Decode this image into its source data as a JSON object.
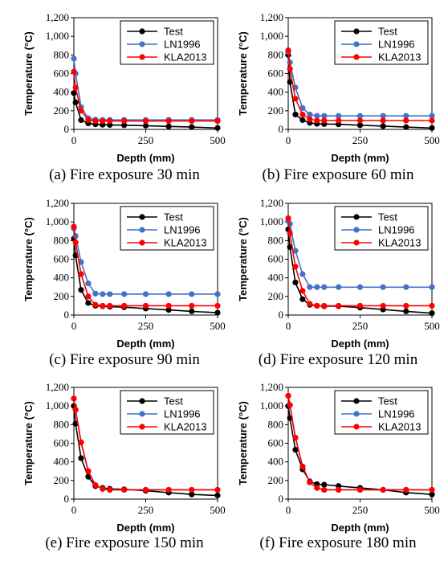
{
  "chart_data": [
    {
      "type": "line",
      "caption": "(a) Fire exposure 30 min",
      "xlabel": "Depth (mm)",
      "ylabel": "Temperature (°C)",
      "xlim": [
        0,
        500
      ],
      "ylim": [
        0,
        1200
      ],
      "xticks": [
        0,
        250,
        500
      ],
      "yticks": [
        0,
        200,
        400,
        600,
        800,
        1000,
        1200
      ],
      "xtick_labels": [
        "0",
        "250",
        "500"
      ],
      "ytick_labels": [
        "0",
        "200",
        "400",
        "600",
        "800",
        "1,000",
        "1,200"
      ],
      "legend_position": "top-right",
      "series": [
        {
          "name": "Test",
          "color": "#000000",
          "x": [
            0,
            6,
            25,
            50,
            75,
            100,
            125,
            175,
            250,
            330,
            410,
            500
          ],
          "y": [
            390,
            290,
            100,
            65,
            55,
            50,
            48,
            45,
            40,
            32,
            25,
            15
          ]
        },
        {
          "name": "LN1996",
          "color": "#4472c4",
          "x": [
            0,
            6,
            25,
            50,
            75,
            100,
            125,
            175,
            250,
            330,
            410,
            500
          ],
          "y": [
            760,
            600,
            240,
            120,
            105,
            102,
            102,
            102,
            102,
            102,
            102,
            102
          ]
        },
        {
          "name": "KLA2013",
          "color": "#ff0000",
          "x": [
            0,
            6,
            25,
            50,
            75,
            100,
            125,
            175,
            250,
            330,
            410,
            500
          ],
          "y": [
            620,
            450,
            200,
            100,
            90,
            90,
            90,
            90,
            90,
            90,
            90,
            90
          ]
        }
      ]
    },
    {
      "type": "line",
      "caption": "(b) Fire exposure 60 min",
      "xlabel": "Depth (mm)",
      "ylabel": "Temperature (°C)",
      "xlim": [
        0,
        500
      ],
      "ylim": [
        0,
        1200
      ],
      "xticks": [
        0,
        250,
        500
      ],
      "yticks": [
        0,
        200,
        400,
        600,
        800,
        1000,
        1200
      ],
      "xtick_labels": [
        "0",
        "250",
        "500"
      ],
      "ytick_labels": [
        "0",
        "200",
        "400",
        "600",
        "800",
        "1,000",
        "1,200"
      ],
      "legend_position": "top-right",
      "series": [
        {
          "name": "Test",
          "color": "#000000",
          "x": [
            0,
            6,
            25,
            50,
            75,
            100,
            125,
            175,
            250,
            330,
            410,
            500
          ],
          "y": [
            800,
            510,
            160,
            100,
            70,
            60,
            58,
            55,
            45,
            35,
            25,
            15
          ]
        },
        {
          "name": "LN1996",
          "color": "#4472c4",
          "x": [
            0,
            6,
            25,
            50,
            75,
            100,
            125,
            175,
            250,
            330,
            410,
            500
          ],
          "y": [
            830,
            720,
            450,
            230,
            160,
            145,
            145,
            145,
            145,
            145,
            145,
            145
          ]
        },
        {
          "name": "KLA2013",
          "color": "#ff0000",
          "x": [
            0,
            6,
            25,
            50,
            75,
            100,
            125,
            175,
            250,
            330,
            410,
            500
          ],
          "y": [
            850,
            650,
            330,
            160,
            110,
            95,
            95,
            95,
            95,
            95,
            95,
            95
          ]
        }
      ]
    },
    {
      "type": "line",
      "caption": "(c) Fire exposure 90 min",
      "xlabel": "Depth (mm)",
      "ylabel": "Temperature (°C)",
      "xlim": [
        0,
        500
      ],
      "ylim": [
        0,
        1200
      ],
      "xticks": [
        0,
        250,
        500
      ],
      "yticks": [
        0,
        200,
        400,
        600,
        800,
        1000,
        1200
      ],
      "xtick_labels": [
        "0",
        "250",
        "500"
      ],
      "ytick_labels": [
        "0",
        "200",
        "400",
        "600",
        "800",
        "1,000",
        "1,200"
      ],
      "legend_position": "top-right",
      "series": [
        {
          "name": "Test",
          "color": "#000000",
          "x": [
            0,
            6,
            25,
            50,
            75,
            100,
            125,
            175,
            250,
            330,
            410,
            500
          ],
          "y": [
            820,
            640,
            270,
            130,
            100,
            95,
            90,
            85,
            70,
            55,
            40,
            25
          ]
        },
        {
          "name": "LN1996",
          "color": "#4472c4",
          "x": [
            0,
            6,
            25,
            50,
            75,
            100,
            125,
            175,
            250,
            330,
            410,
            500
          ],
          "y": [
            930,
            850,
            570,
            340,
            230,
            225,
            225,
            225,
            225,
            225,
            225,
            225
          ]
        },
        {
          "name": "KLA2013",
          "color": "#ff0000",
          "x": [
            0,
            6,
            25,
            50,
            75,
            100,
            125,
            175,
            250,
            330,
            410,
            500
          ],
          "y": [
            950,
            780,
            440,
            200,
            110,
            100,
            100,
            100,
            100,
            100,
            100,
            100
          ]
        }
      ]
    },
    {
      "type": "line",
      "caption": "(d) Fire exposure 120 min",
      "xlabel": "Depth (mm)",
      "ylabel": "Temperature (°C)",
      "xlim": [
        0,
        500
      ],
      "ylim": [
        0,
        1200
      ],
      "xticks": [
        0,
        250,
        500
      ],
      "yticks": [
        0,
        200,
        400,
        600,
        800,
        1000,
        1200
      ],
      "xtick_labels": [
        "0",
        "250",
        "500"
      ],
      "ytick_labels": [
        "0",
        "200",
        "400",
        "600",
        "800",
        "1,000",
        "1,200"
      ],
      "legend_position": "top-right",
      "series": [
        {
          "name": "Test",
          "color": "#000000",
          "x": [
            0,
            6,
            25,
            50,
            75,
            100,
            125,
            175,
            250,
            330,
            410,
            500
          ],
          "y": [
            920,
            730,
            350,
            170,
            110,
            100,
            95,
            95,
            80,
            60,
            40,
            20
          ]
        },
        {
          "name": "LN1996",
          "color": "#4472c4",
          "x": [
            0,
            6,
            25,
            50,
            75,
            100,
            125,
            175,
            250,
            330,
            410,
            500
          ],
          "y": [
            1010,
            980,
            690,
            440,
            300,
            300,
            300,
            300,
            300,
            300,
            300,
            300
          ]
        },
        {
          "name": "KLA2013",
          "color": "#ff0000",
          "x": [
            0,
            6,
            25,
            50,
            75,
            100,
            125,
            175,
            250,
            330,
            410,
            500
          ],
          "y": [
            1040,
            880,
            520,
            260,
            120,
            100,
            100,
            100,
            100,
            100,
            100,
            100
          ]
        }
      ]
    },
    {
      "type": "line",
      "caption": "(e) Fire exposure 150 min",
      "xlabel": "Depth (mm)",
      "ylabel": "Temperature (°C)",
      "xlim": [
        0,
        500
      ],
      "ylim": [
        0,
        1200
      ],
      "xticks": [
        0,
        250,
        500
      ],
      "yticks": [
        0,
        200,
        400,
        600,
        800,
        1000,
        1200
      ],
      "xtick_labels": [
        "0",
        "250",
        "500"
      ],
      "ytick_labels": [
        "0",
        "200",
        "400",
        "600",
        "800",
        "1,000",
        "1,200"
      ],
      "legend_position": "top-right",
      "series": [
        {
          "name": "Test",
          "color": "#000000",
          "x": [
            0,
            6,
            25,
            50,
            75,
            100,
            125,
            175,
            250,
            330,
            410,
            500
          ],
          "y": [
            1000,
            810,
            440,
            240,
            140,
            120,
            110,
            105,
            90,
            70,
            50,
            40
          ]
        },
        {
          "name": "LN1996",
          "color": "#4472c4",
          "x": [
            0,
            6,
            25,
            50,
            75,
            100,
            125,
            175,
            250,
            330,
            410,
            500
          ],
          "y": [
            1080,
            960,
            610,
            300,
            150,
            110,
            100,
            100,
            100,
            100,
            100,
            100
          ]
        },
        {
          "name": "KLA2013",
          "color": "#ff0000",
          "x": [
            0,
            6,
            25,
            50,
            75,
            100,
            125,
            175,
            250,
            330,
            410,
            500
          ],
          "y": [
            1080,
            960,
            610,
            300,
            150,
            110,
            100,
            100,
            100,
            100,
            100,
            100
          ]
        }
      ]
    },
    {
      "type": "line",
      "caption": "(f) Fire exposure 180 min",
      "xlabel": "Depth (mm)",
      "ylabel": "Temperature (°C)",
      "xlim": [
        0,
        500
      ],
      "ylim": [
        0,
        1200
      ],
      "xticks": [
        0,
        250,
        500
      ],
      "yticks": [
        0,
        200,
        400,
        600,
        800,
        1000,
        1200
      ],
      "xtick_labels": [
        "0",
        "250",
        "500"
      ],
      "ytick_labels": [
        "0",
        "200",
        "400",
        "600",
        "800",
        "1,000",
        "1,200"
      ],
      "legend_position": "top-right",
      "series": [
        {
          "name": "Test",
          "color": "#000000",
          "x": [
            0,
            6,
            25,
            50,
            75,
            100,
            125,
            175,
            250,
            330,
            410,
            500
          ],
          "y": [
            1000,
            870,
            530,
            320,
            190,
            160,
            155,
            140,
            120,
            100,
            70,
            50
          ]
        },
        {
          "name": "LN1996",
          "color": "#4472c4",
          "x": [
            0,
            6,
            25,
            50,
            75,
            100,
            125,
            175,
            250,
            330,
            410,
            500
          ],
          "y": [
            1110,
            1010,
            660,
            350,
            180,
            120,
            100,
            100,
            100,
            100,
            100,
            100
          ]
        },
        {
          "name": "KLA2013",
          "color": "#ff0000",
          "x": [
            0,
            6,
            25,
            50,
            75,
            100,
            125,
            175,
            250,
            330,
            410,
            500
          ],
          "y": [
            1110,
            1010,
            660,
            350,
            180,
            120,
            100,
            100,
            100,
            100,
            100,
            100
          ]
        }
      ]
    }
  ]
}
